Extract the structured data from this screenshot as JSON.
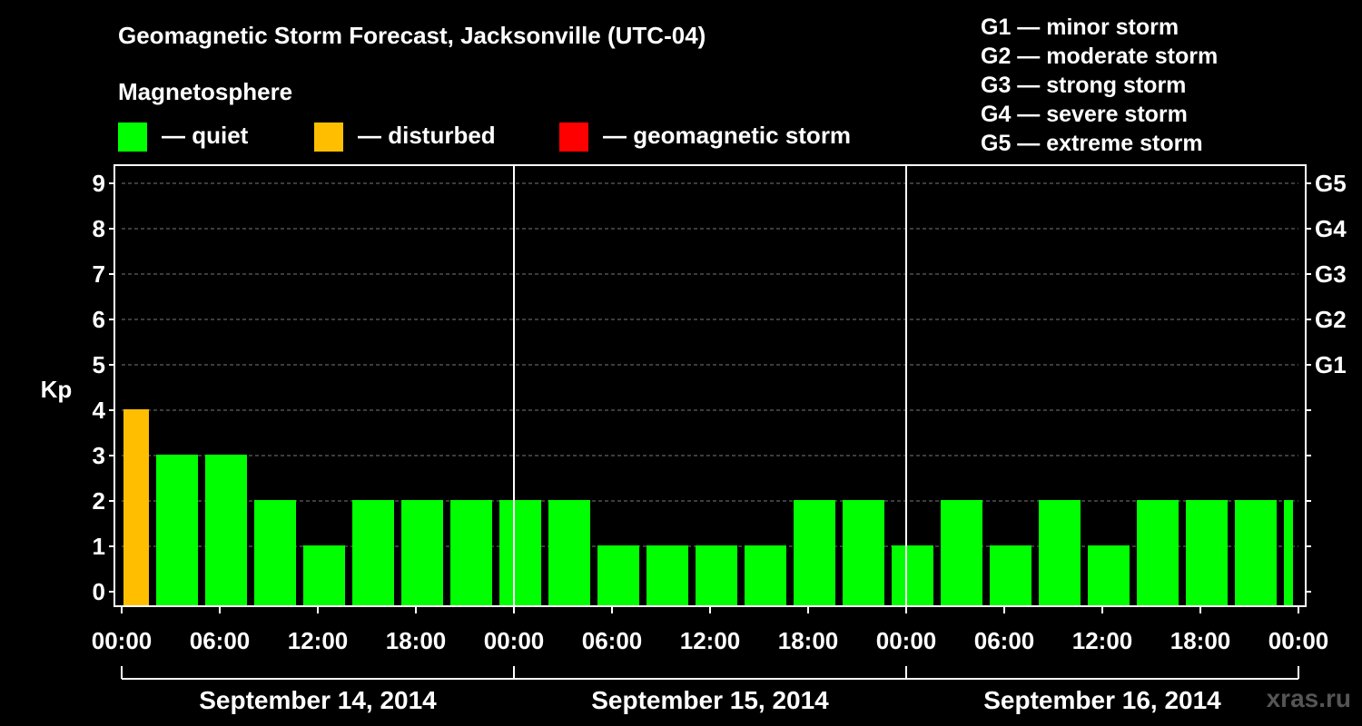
{
  "chart_data": {
    "type": "bar",
    "title": "Geomagnetic Storm Forecast, Jacksonville (UTC-04)",
    "ylabel": "Kp",
    "ylim": [
      0,
      9
    ],
    "yticks": [
      "0",
      "1",
      "2",
      "3",
      "4",
      "5",
      "6",
      "7",
      "8",
      "9"
    ],
    "right_ticks": [
      {
        "kp": 5,
        "label": "G1"
      },
      {
        "kp": 6,
        "label": "G2"
      },
      {
        "kp": 7,
        "label": "G3"
      },
      {
        "kp": 8,
        "label": "G4"
      },
      {
        "kp": 9,
        "label": "G5"
      }
    ],
    "x_tick_labels": [
      "00:00",
      "06:00",
      "12:00",
      "18:00",
      "00:00",
      "06:00",
      "12:00",
      "18:00",
      "00:00",
      "06:00",
      "12:00",
      "18:00",
      "00:00"
    ],
    "x_tick_hours": [
      0,
      6,
      12,
      18,
      24,
      30,
      36,
      42,
      48,
      54,
      60,
      66,
      72
    ],
    "days": [
      "September 14, 2014",
      "September 15, 2014",
      "September 16, 2014"
    ],
    "bar_start_hours": [
      0,
      2,
      5,
      8,
      11,
      14,
      17,
      20,
      23,
      26,
      29,
      32,
      35,
      38,
      41,
      44,
      47,
      50,
      53,
      56,
      59,
      62,
      65,
      68,
      71
    ],
    "bar_end_hours": [
      2,
      5,
      8,
      11,
      14,
      17,
      20,
      23,
      26,
      29,
      32,
      35,
      38,
      41,
      44,
      47,
      50,
      53,
      56,
      59,
      62,
      65,
      68,
      71,
      72
    ],
    "values": [
      4,
      3,
      3,
      2,
      1,
      2,
      2,
      2,
      2,
      2,
      1,
      1,
      1,
      1,
      2,
      2,
      1,
      2,
      1,
      2,
      1,
      2,
      2,
      2,
      2
    ],
    "statuses": [
      "disturbed",
      "quiet",
      "quiet",
      "quiet",
      "quiet",
      "quiet",
      "quiet",
      "quiet",
      "quiet",
      "quiet",
      "quiet",
      "quiet",
      "quiet",
      "quiet",
      "quiet",
      "quiet",
      "quiet",
      "quiet",
      "quiet",
      "quiet",
      "quiet",
      "quiet",
      "quiet",
      "quiet",
      "quiet"
    ],
    "grid": true
  },
  "legend": {
    "heading": "Magnetosphere",
    "items": [
      {
        "label": "— quiet",
        "color": "#00ff00"
      },
      {
        "label": "— disturbed",
        "color": "#ffbf00"
      },
      {
        "label": "— geomagnetic storm",
        "color": "#ff0000"
      }
    ]
  },
  "storm_levels": [
    "G1 — minor storm",
    "G2 — moderate storm",
    "G3 — strong storm",
    "G4 — severe storm",
    "G5 — extreme storm"
  ],
  "colors": {
    "quiet": "#00ff00",
    "disturbed": "#ffbf00",
    "storm": "#ff0000"
  },
  "watermark": "xras.ru"
}
